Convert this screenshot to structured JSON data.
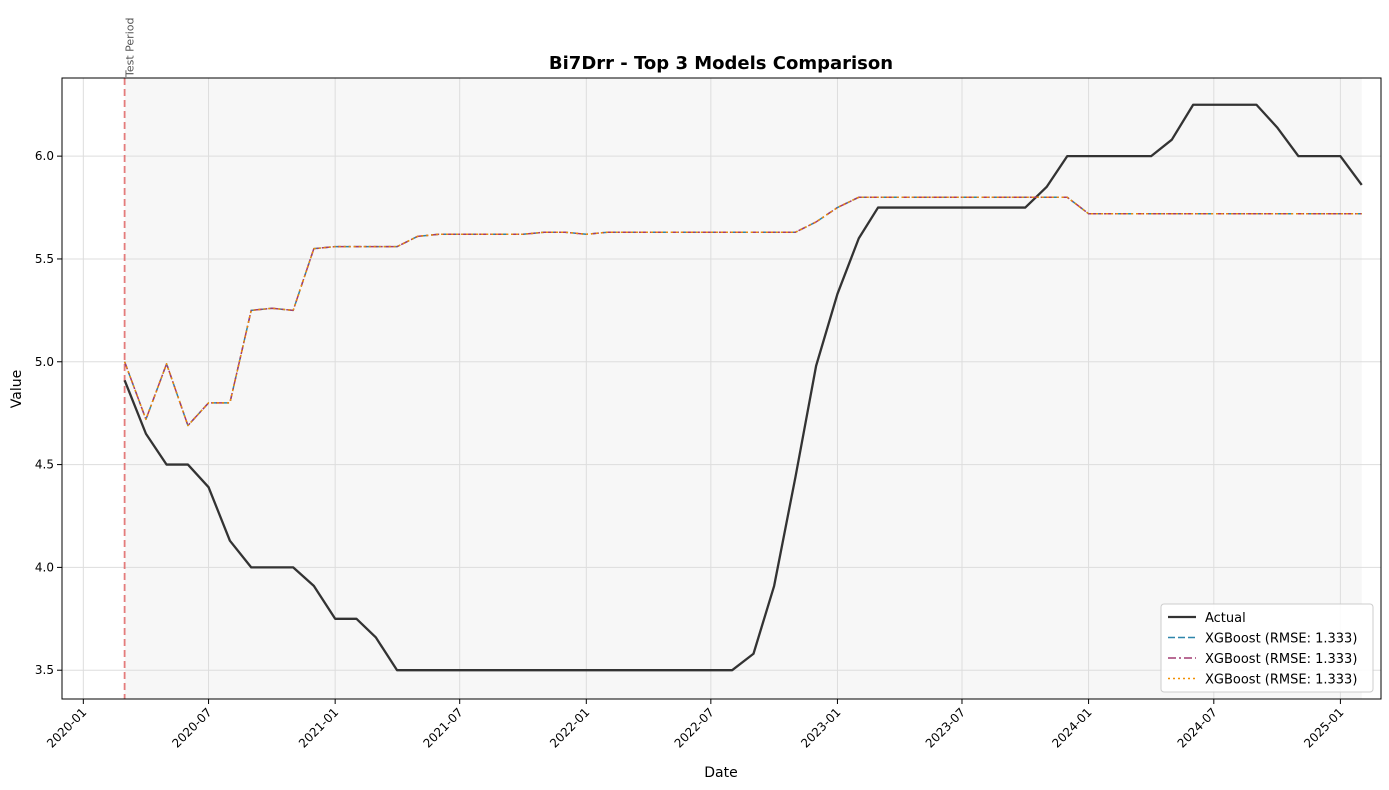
{
  "chart_data": {
    "type": "line",
    "title": "Bi7Drr - Top 3 Models Comparison",
    "xlabel": "Date",
    "ylabel": "Value",
    "xlim": [
      "2019-12-01",
      "2025-03-01"
    ],
    "ylim": [
      3.36,
      6.38
    ],
    "x_ticks": [
      "2020-01",
      "2020-07",
      "2021-01",
      "2021-07",
      "2022-01",
      "2022-07",
      "2023-01",
      "2023-07",
      "2024-01",
      "2024-07",
      "2025-01"
    ],
    "y_ticks": [
      "3.5",
      "4.0",
      "4.5",
      "5.0",
      "5.5",
      "6.0"
    ],
    "grid": true,
    "legend_position": "lower-right",
    "annotation": {
      "text": "Test Period",
      "x": "2020-03-01"
    },
    "shaded_region": [
      "2020-03-01",
      "2025-02-01"
    ],
    "x": [
      "2020-03",
      "2020-04",
      "2020-05",
      "2020-06",
      "2020-07",
      "2020-08",
      "2020-09",
      "2020-10",
      "2020-11",
      "2020-12",
      "2021-01",
      "2021-02",
      "2021-03",
      "2021-04",
      "2021-05",
      "2021-06",
      "2021-07",
      "2021-08",
      "2021-09",
      "2021-10",
      "2021-11",
      "2021-12",
      "2022-01",
      "2022-02",
      "2022-03",
      "2022-04",
      "2022-05",
      "2022-06",
      "2022-07",
      "2022-08",
      "2022-09",
      "2022-10",
      "2022-11",
      "2022-12",
      "2023-01",
      "2023-02",
      "2023-03",
      "2023-04",
      "2023-05",
      "2023-06",
      "2023-07",
      "2023-08",
      "2023-09",
      "2023-10",
      "2023-11",
      "2023-12",
      "2024-01",
      "2024-02",
      "2024-03",
      "2024-04",
      "2024-05",
      "2024-06",
      "2024-07",
      "2024-08",
      "2024-09",
      "2024-10",
      "2024-11",
      "2024-12",
      "2025-01",
      "2025-02"
    ],
    "series": [
      {
        "name": "Actual",
        "color": "#333333",
        "style": "solid",
        "values": [
          4.91,
          4.65,
          4.5,
          4.5,
          4.39,
          4.13,
          4.0,
          4.0,
          4.0,
          3.91,
          3.75,
          3.75,
          3.66,
          3.5,
          3.5,
          3.5,
          3.5,
          3.5,
          3.5,
          3.5,
          3.5,
          3.5,
          3.5,
          3.5,
          3.5,
          3.5,
          3.5,
          3.5,
          3.5,
          3.5,
          3.58,
          3.91,
          4.44,
          4.98,
          5.33,
          5.6,
          5.75,
          5.75,
          5.75,
          5.75,
          5.75,
          5.75,
          5.75,
          5.75,
          5.85,
          6.0,
          6.0,
          6.0,
          6.0,
          6.0,
          6.08,
          6.25,
          6.25,
          6.25,
          6.25,
          6.14,
          6.0,
          6.0,
          6.0,
          5.86
        ]
      },
      {
        "name": "XGBoost (RMSE: 1.333)",
        "color": "#2e86ab",
        "style": "dashed",
        "values": [
          5.0,
          4.72,
          4.99,
          4.69,
          4.8,
          4.8,
          5.25,
          5.26,
          5.25,
          5.55,
          5.56,
          5.56,
          5.56,
          5.56,
          5.61,
          5.62,
          5.62,
          5.62,
          5.62,
          5.62,
          5.63,
          5.63,
          5.62,
          5.63,
          5.63,
          5.63,
          5.63,
          5.63,
          5.63,
          5.63,
          5.63,
          5.63,
          5.63,
          5.68,
          5.75,
          5.8,
          5.8,
          5.8,
          5.8,
          5.8,
          5.8,
          5.8,
          5.8,
          5.8,
          5.8,
          5.8,
          5.72,
          5.72,
          5.72,
          5.72,
          5.72,
          5.72,
          5.72,
          5.72,
          5.72,
          5.72,
          5.72,
          5.72,
          5.72,
          5.72
        ]
      },
      {
        "name": "XGBoost (RMSE: 1.333)",
        "color": "#a23b72",
        "style": "dashdot",
        "values": [
          5.0,
          4.72,
          4.99,
          4.69,
          4.8,
          4.8,
          5.25,
          5.26,
          5.25,
          5.55,
          5.56,
          5.56,
          5.56,
          5.56,
          5.61,
          5.62,
          5.62,
          5.62,
          5.62,
          5.62,
          5.63,
          5.63,
          5.62,
          5.63,
          5.63,
          5.63,
          5.63,
          5.63,
          5.63,
          5.63,
          5.63,
          5.63,
          5.63,
          5.68,
          5.75,
          5.8,
          5.8,
          5.8,
          5.8,
          5.8,
          5.8,
          5.8,
          5.8,
          5.8,
          5.8,
          5.8,
          5.72,
          5.72,
          5.72,
          5.72,
          5.72,
          5.72,
          5.72,
          5.72,
          5.72,
          5.72,
          5.72,
          5.72,
          5.72,
          5.72
        ]
      },
      {
        "name": "XGBoost (RMSE: 1.333)",
        "color": "#f18f01",
        "style": "dotted",
        "values": [
          5.0,
          4.72,
          4.99,
          4.69,
          4.8,
          4.8,
          5.25,
          5.26,
          5.25,
          5.55,
          5.56,
          5.56,
          5.56,
          5.56,
          5.61,
          5.62,
          5.62,
          5.62,
          5.62,
          5.62,
          5.63,
          5.63,
          5.62,
          5.63,
          5.63,
          5.63,
          5.63,
          5.63,
          5.63,
          5.63,
          5.63,
          5.63,
          5.63,
          5.68,
          5.75,
          5.8,
          5.8,
          5.8,
          5.8,
          5.8,
          5.8,
          5.8,
          5.8,
          5.8,
          5.8,
          5.8,
          5.72,
          5.72,
          5.72,
          5.72,
          5.72,
          5.72,
          5.72,
          5.72,
          5.72,
          5.72,
          5.72,
          5.72,
          5.72,
          5.72
        ]
      }
    ]
  }
}
